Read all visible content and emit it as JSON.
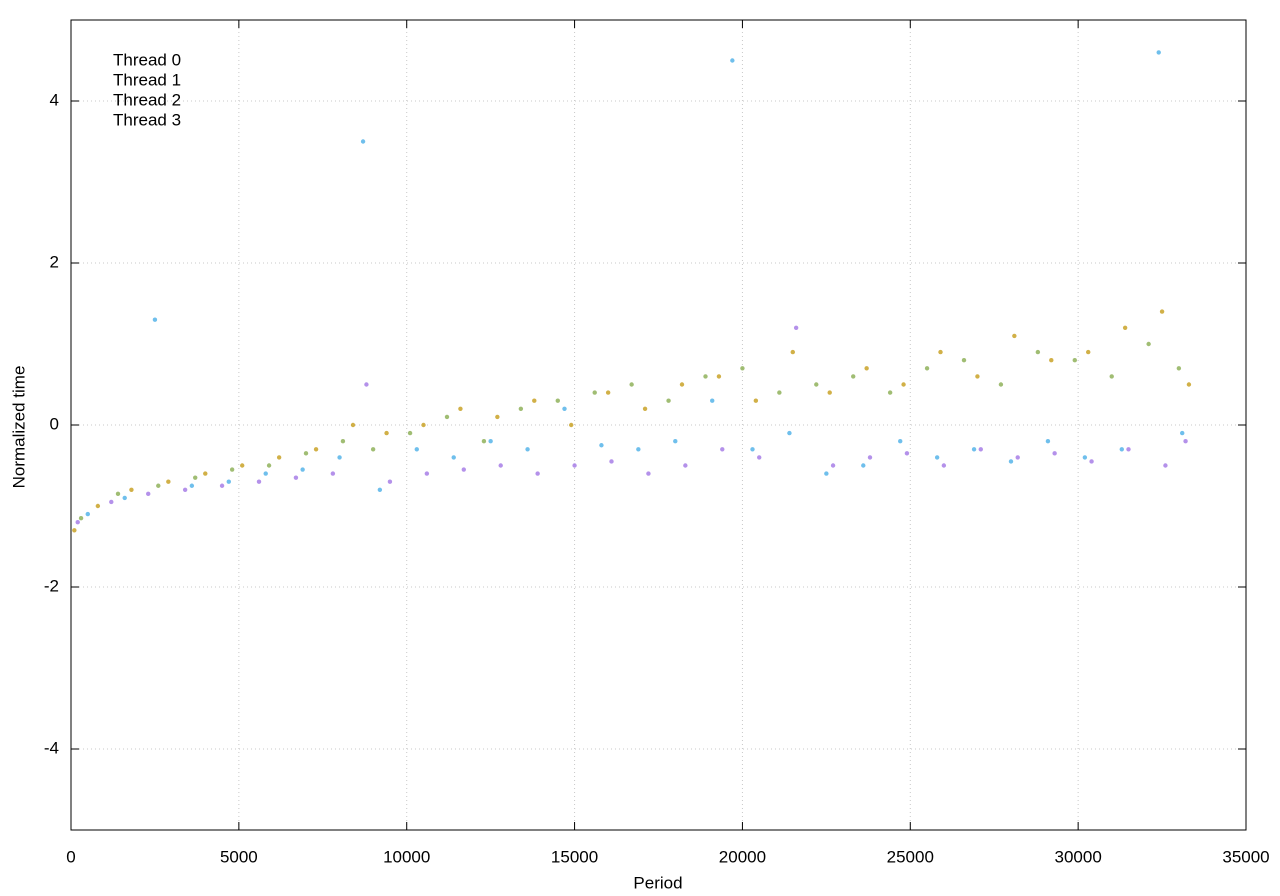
{
  "chart_data": {
    "type": "scatter",
    "x_label": "Period",
    "y_label": "Normalized time",
    "xlim": [
      0,
      35000
    ],
    "ylim": [
      -5,
      5
    ],
    "xticks": [
      0,
      5000,
      10000,
      15000,
      20000,
      25000,
      30000,
      35000
    ],
    "yticks": [
      -4,
      -2,
      0,
      2,
      4
    ],
    "grid": true,
    "legend": "top-left",
    "series": [
      {
        "name": "Thread 0",
        "color": "#a77ee6",
        "x": [
          200,
          1200,
          2300,
          3400,
          4500,
          5600,
          6700,
          7800,
          8800,
          9500,
          10600,
          11700,
          12800,
          13900,
          15000,
          16100,
          17200,
          18300,
          19400,
          20500,
          21600,
          22700,
          23800,
          24900,
          26000,
          27100,
          28200,
          29300,
          30400,
          31500,
          32600,
          33200
        ],
        "values": [
          -1.2,
          -0.95,
          -0.85,
          -0.8,
          -0.75,
          -0.7,
          -0.65,
          -0.6,
          0.5,
          -0.7,
          -0.6,
          -0.55,
          -0.5,
          -0.6,
          -0.5,
          -0.45,
          -0.6,
          -0.5,
          -0.3,
          -0.4,
          1.2,
          -0.5,
          -0.4,
          -0.35,
          -0.5,
          -0.3,
          -0.4,
          -0.35,
          -0.45,
          -0.3,
          -0.5,
          -0.2
        ]
      },
      {
        "name": "Thread 1",
        "color": "#56b4e9",
        "x": [
          500,
          1600,
          2500,
          3600,
          4700,
          5800,
          6900,
          8000,
          8700,
          9200,
          10300,
          11400,
          12500,
          13600,
          14700,
          15800,
          16900,
          18000,
          19100,
          19700,
          20300,
          21400,
          22500,
          23600,
          24700,
          25800,
          26900,
          28000,
          29100,
          30200,
          31300,
          32400,
          33100
        ],
        "values": [
          -1.1,
          -0.9,
          1.3,
          -0.75,
          -0.7,
          -0.6,
          -0.55,
          -0.4,
          3.5,
          -0.8,
          -0.3,
          -0.4,
          -0.2,
          -0.3,
          0.2,
          -0.25,
          -0.3,
          -0.2,
          0.3,
          4.5,
          -0.3,
          -0.1,
          -0.6,
          -0.5,
          -0.2,
          -0.4,
          -0.3,
          -0.45,
          -0.2,
          -0.4,
          -0.3,
          4.6,
          -0.1
        ]
      },
      {
        "name": "Thread 2",
        "color": "#8fb25a",
        "x": [
          300,
          1400,
          2600,
          3700,
          4800,
          5900,
          7000,
          8100,
          9000,
          10100,
          11200,
          12300,
          13400,
          14500,
          15600,
          16700,
          17800,
          18900,
          20000,
          21100,
          22200,
          23300,
          24400,
          25500,
          26600,
          27700,
          28800,
          29900,
          31000,
          32100,
          33000
        ],
        "values": [
          -1.15,
          -0.85,
          -0.75,
          -0.65,
          -0.55,
          -0.5,
          -0.35,
          -0.2,
          -0.3,
          -0.1,
          0.1,
          -0.2,
          0.2,
          0.3,
          0.4,
          0.5,
          0.3,
          0.6,
          0.7,
          0.4,
          0.5,
          0.6,
          0.4,
          0.7,
          0.8,
          0.5,
          0.9,
          0.8,
          0.6,
          1.0,
          0.7
        ]
      },
      {
        "name": "Thread 3",
        "color": "#c9a227",
        "x": [
          100,
          800,
          1800,
          2900,
          4000,
          5100,
          6200,
          7300,
          8400,
          9400,
          10500,
          11600,
          12700,
          13800,
          14900,
          16000,
          17100,
          18200,
          19300,
          20400,
          21500,
          22600,
          23700,
          24800,
          25900,
          27000,
          28100,
          29200,
          30300,
          31400,
          32500,
          33300
        ],
        "values": [
          -1.3,
          -1.0,
          -0.8,
          -0.7,
          -0.6,
          -0.5,
          -0.4,
          -0.3,
          0.0,
          -0.1,
          0.0,
          0.2,
          0.1,
          0.3,
          0.0,
          0.4,
          0.2,
          0.5,
          0.6,
          0.3,
          0.9,
          0.4,
          0.7,
          0.5,
          0.9,
          0.6,
          1.1,
          0.8,
          0.9,
          1.2,
          1.4,
          0.5
        ]
      }
    ]
  }
}
